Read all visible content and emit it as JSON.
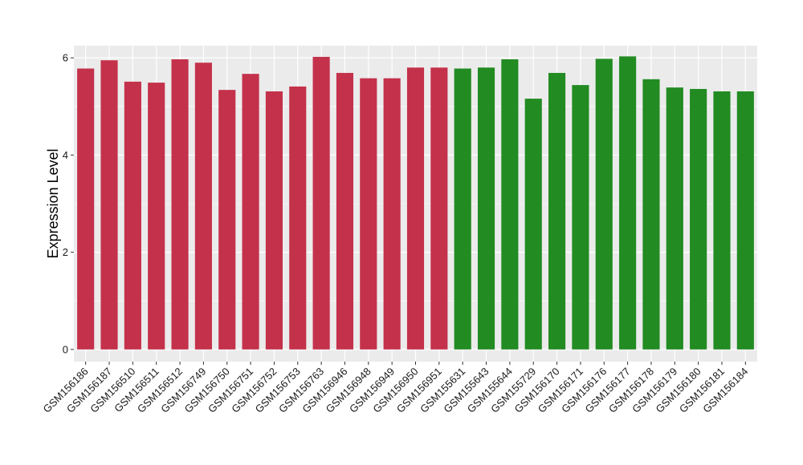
{
  "chart_data": {
    "type": "bar",
    "ylabel": "Expression Level",
    "xlabel": "",
    "ylim": [
      -0.25,
      6.25
    ],
    "y_ticks": [
      0,
      2,
      4,
      6
    ],
    "grid": true,
    "categories": [
      "GSM156186",
      "GSM156187",
      "GSM156510",
      "GSM156511",
      "GSM156512",
      "GSM156749",
      "GSM156750",
      "GSM156751",
      "GSM156752",
      "GSM156753",
      "GSM156763",
      "GSM156946",
      "GSM156948",
      "GSM156949",
      "GSM156950",
      "GSM156951",
      "GSM155631",
      "GSM155643",
      "GSM155644",
      "GSM155729",
      "GSM156170",
      "GSM156171",
      "GSM156176",
      "GSM156177",
      "GSM156178",
      "GSM156179",
      "GSM156180",
      "GSM156181",
      "GSM156184"
    ],
    "values": [
      5.78,
      5.95,
      5.51,
      5.49,
      5.97,
      5.9,
      5.34,
      5.67,
      5.31,
      5.41,
      6.02,
      5.69,
      5.58,
      5.58,
      5.8,
      5.8,
      5.78,
      5.8,
      5.97,
      5.16,
      5.69,
      5.44,
      5.98,
      6.03,
      5.56,
      5.39,
      5.36,
      5.31,
      5.31
    ],
    "group_sizes": [
      16,
      13
    ],
    "colors": [
      "#c4314b",
      "#228b22"
    ],
    "panel_background": "#ebebeb",
    "grid_color": "#ffffff"
  }
}
